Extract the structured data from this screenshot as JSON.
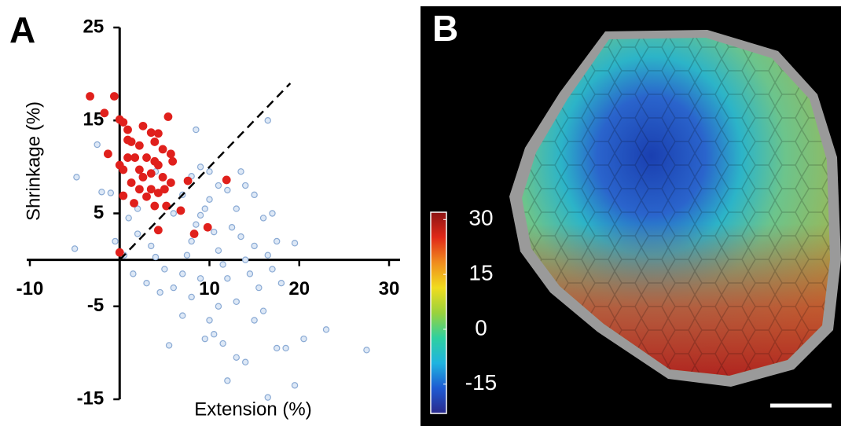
{
  "chart_data": [
    {
      "type": "scatter",
      "panel_label": "A",
      "xlabel": "Extension (%)",
      "ylabel": "Shrinkage (%)",
      "xlim": [
        -10,
        30
      ],
      "ylim": [
        -15,
        25
      ],
      "xticks": [
        -10,
        10,
        20,
        30
      ],
      "yticks": [
        25,
        15,
        5,
        -5,
        -15
      ],
      "diagonal": {
        "x": [
          0,
          19
        ],
        "y": [
          0,
          19
        ]
      },
      "series": [
        {
          "color": "#8aaad4",
          "fill": "#dde8f6",
          "x": [
            -4.8,
            -5,
            -2,
            -1,
            -2.5,
            1,
            2,
            3.5,
            4,
            5,
            3,
            4.5,
            6,
            7,
            7.5,
            8,
            8.5,
            9,
            9.5,
            10,
            10.5,
            11,
            11.5,
            12,
            12.5,
            13,
            13.5,
            14,
            14.5,
            15,
            15.5,
            16,
            16.5,
            17,
            17.5,
            18,
            19.5,
            16,
            15,
            13,
            11,
            10,
            10.5,
            9.5,
            11.5,
            13,
            14,
            17.5,
            18.5,
            20.5,
            23,
            27.5,
            19.5,
            12,
            16.5,
            5.5,
            7,
            8,
            9,
            6,
            7,
            8,
            9,
            10,
            11,
            12,
            13.5,
            14,
            15,
            16.5,
            8.5,
            4,
            2.5,
            -0.5,
            0.5,
            1.5,
            2,
            17
          ],
          "y": [
            8.9,
            1.2,
            7.3,
            7.2,
            12.4,
            4.5,
            2.8,
            1.5,
            0.3,
            -1,
            -2.5,
            -3.5,
            -3,
            -1.5,
            0.5,
            2,
            3.8,
            4.8,
            5.5,
            6.5,
            3,
            1,
            -0.5,
            -2,
            3.5,
            5.5,
            2.5,
            0,
            -1.5,
            1.5,
            -3,
            4.5,
            0.5,
            -1,
            2,
            -2.5,
            1.8,
            -5.5,
            -6.5,
            -4.5,
            -5,
            -6.5,
            -8,
            -8.5,
            -9,
            -10.5,
            -11,
            -9.5,
            -9.5,
            -8.5,
            -7.5,
            -9.7,
            -13.5,
            -13,
            -14.8,
            -9.2,
            -6,
            -4,
            -2,
            5,
            7,
            9,
            10,
            9.5,
            8,
            7.5,
            9.5,
            8,
            7,
            15,
            14,
            9.5,
            9,
            2,
            0.5,
            -1.5,
            5.5,
            5
          ]
        },
        {
          "color": "#e0201c",
          "fill": "#e0201c",
          "x": [
            -3.3,
            -0.6,
            -1.7,
            0,
            0.4,
            5.4,
            2.6,
            0.9,
            3.5,
            4.3,
            -1.3,
            0.9,
            1.3,
            2.2,
            3.9,
            4.8,
            5.7,
            5.9,
            0,
            0.9,
            1.7,
            3,
            3.9,
            4.3,
            0.4,
            2.2,
            2.6,
            3.5,
            4.8,
            5.7,
            1.3,
            2.2,
            3.5,
            4.3,
            0.4,
            1.6,
            3,
            5.2,
            6.8,
            7.6,
            11.9,
            4.3,
            9.8,
            8.3,
            0,
            3.9,
            5
          ],
          "y": [
            17.6,
            17.6,
            15.8,
            15.1,
            14.8,
            15.4,
            14.4,
            14,
            13.7,
            13.6,
            11.4,
            12.9,
            12.7,
            12.3,
            12.7,
            11.9,
            11.4,
            10.6,
            10.2,
            11,
            11,
            11,
            10.6,
            10.2,
            9.7,
            9.7,
            8.9,
            9.3,
            8.9,
            8.3,
            8.3,
            7.6,
            7.6,
            7.2,
            6.9,
            6.1,
            6.8,
            5.8,
            5.3,
            8.5,
            8.6,
            3.2,
            3.5,
            2.8,
            0.8,
            5.8,
            7.6
          ]
        }
      ]
    },
    {
      "type": "image",
      "panel_label": "B",
      "colorbar": {
        "lim": [
          -23,
          32
        ],
        "ticks": [
          30,
          15,
          0,
          -15
        ],
        "colors": [
          "#2a2a8c",
          "#1e5ad2",
          "#1fb4e0",
          "#2ed0a0",
          "#9ad23c",
          "#f0dc1e",
          "#f08c1e",
          "#e02818",
          "#8c1414"
        ]
      }
    }
  ]
}
